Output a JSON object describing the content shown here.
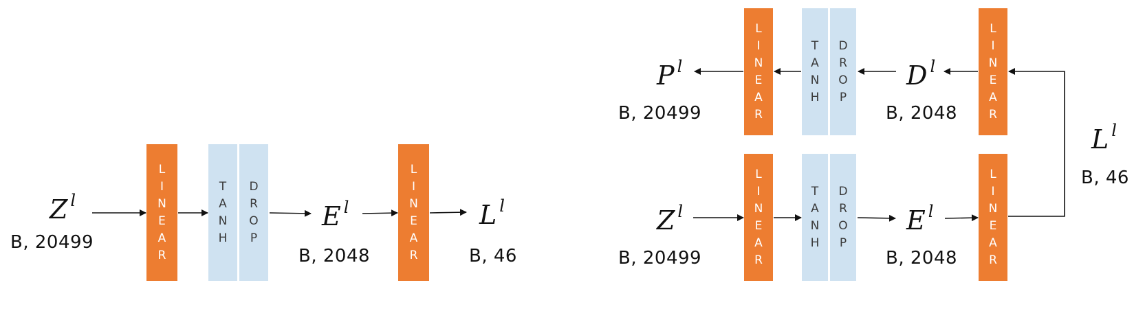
{
  "linear_text": "LINEAR",
  "tanh_text": "TANH",
  "drop_text": "DROP",
  "colors": {
    "linear": "#ED7D31",
    "activation": "#CFE2F1",
    "arrow": "#111111"
  },
  "left": {
    "z_var": "Z",
    "z_sup": "l",
    "z_dim": "B, 20499",
    "e_var": "E",
    "e_sup": "l",
    "e_dim": "B, 2048",
    "l_var": "L",
    "l_sup": "l",
    "l_dim": "B, 46"
  },
  "right": {
    "p_var": "P",
    "p_sup": "l",
    "p_dim": "B, 20499",
    "d_var": "D",
    "d_sup": "l",
    "d_dim": "B, 2048",
    "z_var": "Z",
    "z_sup": "l",
    "z_dim": "B, 20499",
    "e_var": "E",
    "e_sup": "l",
    "e_dim": "B, 2048",
    "l_var": "L",
    "l_sup": "l",
    "l_dim": "B, 46"
  }
}
